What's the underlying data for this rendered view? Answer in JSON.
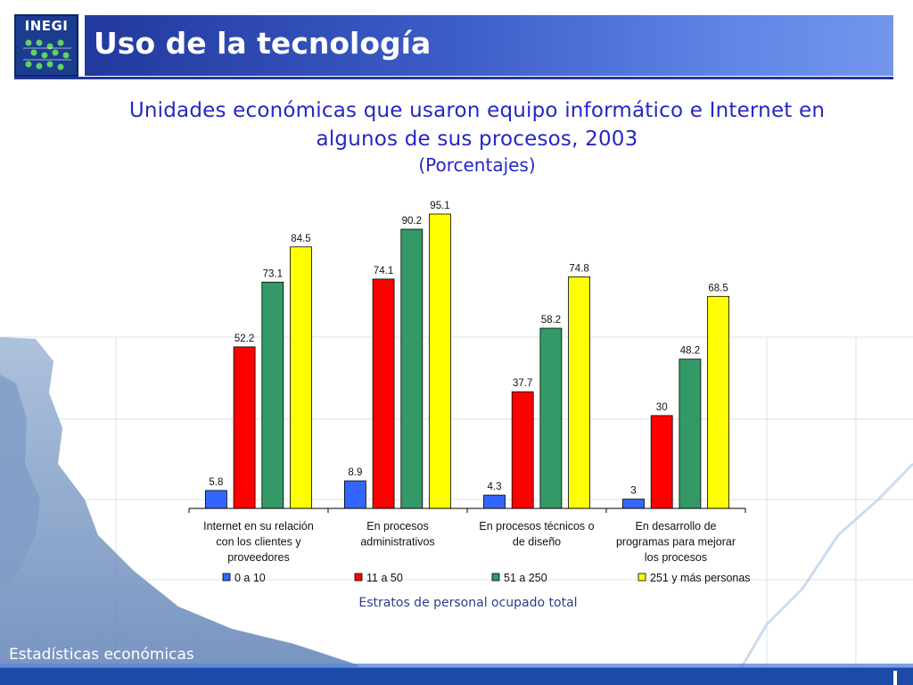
{
  "header": {
    "logo_text": "INEGI",
    "title": "Uso de la tecnología"
  },
  "footer": {
    "text": "Estadísticas económicas"
  },
  "colors": {
    "header_blue": "#22399e",
    "title_text": "#2626c6",
    "footer_blue": "#1b4aa8"
  },
  "chart_data": {
    "type": "bar",
    "title": "Unidades económicas que usaron equipo informático e Internet en algunos de sus procesos, 2003",
    "subtitle": "(Porcentajes)",
    "xlabel": "Estratos de personal ocupado total",
    "ylabel": "",
    "ylim": [
      0,
      100
    ],
    "grid": false,
    "legend_position": "bottom",
    "categories": [
      [
        "Internet en su relación",
        "con los clientes y",
        "proveedores"
      ],
      [
        "En procesos",
        "administrativos"
      ],
      [
        "En procesos técnicos o",
        "de diseño"
      ],
      [
        "En desarrollo de",
        "programas para mejorar",
        "los procesos"
      ]
    ],
    "series": [
      {
        "name": "0 a 10",
        "color": "#3366ff",
        "values": [
          5.8,
          8.9,
          4.3,
          3
        ]
      },
      {
        "name": "11 a 50",
        "color": "#ff0000",
        "values": [
          52.2,
          74.1,
          37.7,
          30
        ]
      },
      {
        "name": "51 a 250",
        "color": "#339966",
        "values": [
          73.1,
          90.2,
          58.2,
          48.2
        ]
      },
      {
        "name": "251 y más personas",
        "color": "#ffff00",
        "values": [
          84.5,
          95.1,
          74.8,
          68.5
        ]
      }
    ]
  }
}
